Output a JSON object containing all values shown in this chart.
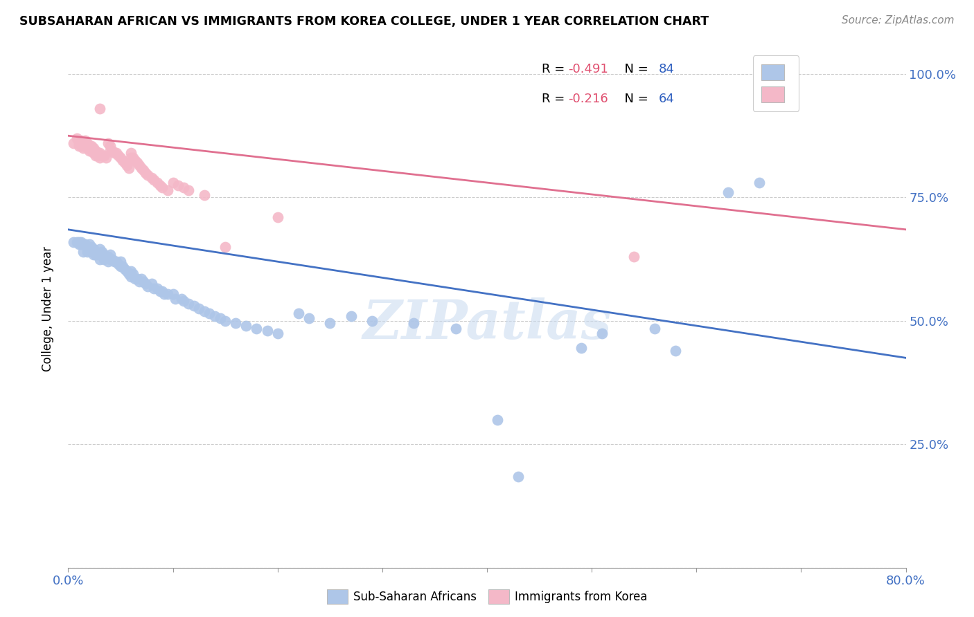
{
  "title": "SUBSAHARAN AFRICAN VS IMMIGRANTS FROM KOREA COLLEGE, UNDER 1 YEAR CORRELATION CHART",
  "source": "Source: ZipAtlas.com",
  "ylabel": "College, Under 1 year",
  "ytick_labels": [
    "",
    "25.0%",
    "50.0%",
    "75.0%",
    "100.0%"
  ],
  "ytick_values": [
    0,
    0.25,
    0.5,
    0.75,
    1.0
  ],
  "xlim": [
    0,
    0.8
  ],
  "ylim": [
    0,
    1.05
  ],
  "watermark": "ZIPatlas",
  "blue_scatter_color": "#aec6e8",
  "pink_scatter_color": "#f4b8c8",
  "blue_line_color": "#4472c4",
  "pink_line_color": "#e07090",
  "blue_data": [
    [
      0.005,
      0.66
    ],
    [
      0.008,
      0.66
    ],
    [
      0.01,
      0.66
    ],
    [
      0.01,
      0.655
    ],
    [
      0.012,
      0.66
    ],
    [
      0.012,
      0.655
    ],
    [
      0.014,
      0.655
    ],
    [
      0.014,
      0.64
    ],
    [
      0.016,
      0.655
    ],
    [
      0.018,
      0.65
    ],
    [
      0.018,
      0.64
    ],
    [
      0.02,
      0.655
    ],
    [
      0.02,
      0.645
    ],
    [
      0.022,
      0.65
    ],
    [
      0.022,
      0.64
    ],
    [
      0.024,
      0.645
    ],
    [
      0.024,
      0.635
    ],
    [
      0.026,
      0.64
    ],
    [
      0.026,
      0.635
    ],
    [
      0.03,
      0.645
    ],
    [
      0.03,
      0.635
    ],
    [
      0.03,
      0.625
    ],
    [
      0.032,
      0.64
    ],
    [
      0.034,
      0.635
    ],
    [
      0.034,
      0.625
    ],
    [
      0.036,
      0.63
    ],
    [
      0.038,
      0.63
    ],
    [
      0.038,
      0.62
    ],
    [
      0.04,
      0.635
    ],
    [
      0.04,
      0.625
    ],
    [
      0.042,
      0.625
    ],
    [
      0.044,
      0.62
    ],
    [
      0.046,
      0.62
    ],
    [
      0.048,
      0.615
    ],
    [
      0.05,
      0.62
    ],
    [
      0.05,
      0.61
    ],
    [
      0.052,
      0.61
    ],
    [
      0.054,
      0.605
    ],
    [
      0.056,
      0.6
    ],
    [
      0.058,
      0.595
    ],
    [
      0.06,
      0.6
    ],
    [
      0.06,
      0.59
    ],
    [
      0.062,
      0.595
    ],
    [
      0.064,
      0.585
    ],
    [
      0.066,
      0.585
    ],
    [
      0.068,
      0.58
    ],
    [
      0.07,
      0.585
    ],
    [
      0.072,
      0.58
    ],
    [
      0.074,
      0.575
    ],
    [
      0.076,
      0.57
    ],
    [
      0.08,
      0.575
    ],
    [
      0.082,
      0.565
    ],
    [
      0.085,
      0.565
    ],
    [
      0.088,
      0.56
    ],
    [
      0.09,
      0.56
    ],
    [
      0.092,
      0.555
    ],
    [
      0.095,
      0.555
    ],
    [
      0.1,
      0.555
    ],
    [
      0.102,
      0.545
    ],
    [
      0.108,
      0.545
    ],
    [
      0.11,
      0.54
    ],
    [
      0.115,
      0.535
    ],
    [
      0.12,
      0.53
    ],
    [
      0.125,
      0.525
    ],
    [
      0.13,
      0.52
    ],
    [
      0.135,
      0.515
    ],
    [
      0.14,
      0.51
    ],
    [
      0.145,
      0.505
    ],
    [
      0.15,
      0.5
    ],
    [
      0.16,
      0.495
    ],
    [
      0.17,
      0.49
    ],
    [
      0.18,
      0.485
    ],
    [
      0.19,
      0.48
    ],
    [
      0.2,
      0.475
    ],
    [
      0.22,
      0.515
    ],
    [
      0.23,
      0.505
    ],
    [
      0.25,
      0.495
    ],
    [
      0.27,
      0.51
    ],
    [
      0.29,
      0.5
    ],
    [
      0.33,
      0.495
    ],
    [
      0.37,
      0.485
    ],
    [
      0.41,
      0.3
    ],
    [
      0.43,
      0.185
    ],
    [
      0.49,
      0.445
    ],
    [
      0.51,
      0.475
    ],
    [
      0.56,
      0.485
    ],
    [
      0.58,
      0.44
    ],
    [
      0.63,
      0.76
    ],
    [
      0.66,
      0.78
    ]
  ],
  "pink_data": [
    [
      0.005,
      0.86
    ],
    [
      0.008,
      0.87
    ],
    [
      0.01,
      0.86
    ],
    [
      0.01,
      0.855
    ],
    [
      0.012,
      0.865
    ],
    [
      0.012,
      0.855
    ],
    [
      0.014,
      0.86
    ],
    [
      0.014,
      0.85
    ],
    [
      0.016,
      0.865
    ],
    [
      0.016,
      0.855
    ],
    [
      0.018,
      0.86
    ],
    [
      0.018,
      0.85
    ],
    [
      0.02,
      0.855
    ],
    [
      0.02,
      0.845
    ],
    [
      0.022,
      0.855
    ],
    [
      0.022,
      0.845
    ],
    [
      0.024,
      0.85
    ],
    [
      0.024,
      0.84
    ],
    [
      0.026,
      0.845
    ],
    [
      0.026,
      0.835
    ],
    [
      0.028,
      0.84
    ],
    [
      0.028,
      0.835
    ],
    [
      0.03,
      0.93
    ],
    [
      0.03,
      0.84
    ],
    [
      0.03,
      0.83
    ],
    [
      0.032,
      0.835
    ],
    [
      0.034,
      0.835
    ],
    [
      0.036,
      0.83
    ],
    [
      0.038,
      0.86
    ],
    [
      0.04,
      0.855
    ],
    [
      0.04,
      0.845
    ],
    [
      0.042,
      0.845
    ],
    [
      0.044,
      0.84
    ],
    [
      0.046,
      0.84
    ],
    [
      0.048,
      0.835
    ],
    [
      0.05,
      0.83
    ],
    [
      0.052,
      0.825
    ],
    [
      0.054,
      0.82
    ],
    [
      0.056,
      0.815
    ],
    [
      0.058,
      0.81
    ],
    [
      0.06,
      0.84
    ],
    [
      0.06,
      0.83
    ],
    [
      0.062,
      0.83
    ],
    [
      0.064,
      0.825
    ],
    [
      0.066,
      0.82
    ],
    [
      0.068,
      0.815
    ],
    [
      0.07,
      0.81
    ],
    [
      0.072,
      0.805
    ],
    [
      0.074,
      0.8
    ],
    [
      0.076,
      0.795
    ],
    [
      0.08,
      0.79
    ],
    [
      0.082,
      0.785
    ],
    [
      0.085,
      0.78
    ],
    [
      0.088,
      0.775
    ],
    [
      0.09,
      0.77
    ],
    [
      0.095,
      0.765
    ],
    [
      0.1,
      0.78
    ],
    [
      0.105,
      0.775
    ],
    [
      0.11,
      0.77
    ],
    [
      0.115,
      0.765
    ],
    [
      0.13,
      0.755
    ],
    [
      0.15,
      0.65
    ],
    [
      0.2,
      0.71
    ],
    [
      0.54,
      0.63
    ]
  ],
  "blue_line_x": [
    0.0,
    0.8
  ],
  "blue_line_y": [
    0.685,
    0.425
  ],
  "pink_line_x": [
    0.0,
    0.8
  ],
  "pink_line_y": [
    0.875,
    0.685
  ],
  "background_color": "#ffffff",
  "grid_color": "#cccccc",
  "tick_color": "#4472c4"
}
